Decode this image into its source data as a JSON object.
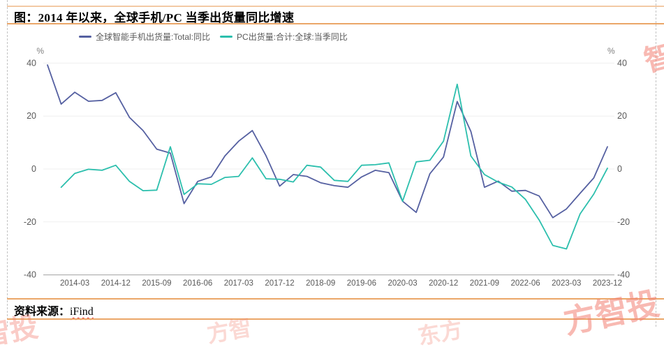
{
  "header": {
    "title": "图：2014 年以来，全球手机/PC 当季出货量同比增速"
  },
  "legend": [
    {
      "label": "全球智能手机出货量:Total:同比",
      "color": "#5560a1"
    },
    {
      "label": "PC出货量:合计:全球:当季同比",
      "color": "#2cbfad"
    }
  ],
  "footer": {
    "source_label": "资料来源：",
    "source_value": "iFind"
  },
  "watermark": {
    "text": "东方智投",
    "fragment_bottom_right": "方智投",
    "fragment_top_right": "智",
    "fragment_bottom_left": "智投",
    "fragment_center_1": "方智",
    "fragment_center_2": "东方"
  },
  "chart_data": {
    "type": "line",
    "title": "",
    "y_unit": "%",
    "y_ticks": [
      40,
      20,
      0,
      -20,
      -40
    ],
    "ylim": [
      -40,
      42
    ],
    "grid": "horizontal",
    "legend_position": "top-left",
    "x": [
      "2013-09",
      "2013-12",
      "2014-03",
      "2014-06",
      "2014-09",
      "2014-12",
      "2015-03",
      "2015-06",
      "2015-09",
      "2015-12",
      "2016-03",
      "2016-06",
      "2016-09",
      "2016-12",
      "2017-03",
      "2017-06",
      "2017-09",
      "2017-12",
      "2018-03",
      "2018-06",
      "2018-09",
      "2018-12",
      "2019-03",
      "2019-06",
      "2019-09",
      "2019-12",
      "2020-03",
      "2020-06",
      "2020-09",
      "2020-12",
      "2021-03",
      "2021-06",
      "2021-09",
      "2021-12",
      "2022-03",
      "2022-06",
      "2022-09",
      "2022-12",
      "2023-03",
      "2023-06",
      "2023-09",
      "2023-12"
    ],
    "x_tick_labels": [
      "2014-03",
      "2014-12",
      "2015-09",
      "2016-06",
      "2017-03",
      "2017-12",
      "2018-09",
      "2019-06",
      "2020-03",
      "2020-12",
      "2021-09",
      "2022-06",
      "2023-03",
      "2023-12"
    ],
    "series": [
      {
        "name": "全球智能手机出货量:Total:同比",
        "color": "#5560a1",
        "values": [
          39.3,
          24.5,
          29.0,
          25.6,
          25.9,
          28.8,
          19.5,
          14.5,
          7.5,
          6.0,
          -13.1,
          -4.7,
          -3.0,
          5.0,
          10.5,
          14.5,
          5.0,
          -6.5,
          -2.1,
          -2.8,
          -5.2,
          -6.3,
          -6.9,
          -3.0,
          -0.5,
          -1.4,
          -12.2,
          -16.4,
          -1.8,
          4.5,
          25.5,
          14.2,
          -6.9,
          -4.6,
          -8.4,
          -8.1,
          -10.2,
          -18.4,
          -15.1,
          -9.2,
          -3.4,
          8.4
        ]
      },
      {
        "name": "PC出货量:合计:全球:当季同比",
        "color": "#2cbfad",
        "values": [
          null,
          -6.9,
          -1.7,
          -0.1,
          -0.5,
          1.4,
          -4.7,
          -8.2,
          -8.0,
          8.4,
          -9.6,
          -5.6,
          -5.8,
          -3.2,
          -2.8,
          4.2,
          -3.7,
          -3.9,
          -4.9,
          1.4,
          0.7,
          -4.3,
          -4.7,
          1.4,
          1.6,
          2.3,
          -12.2,
          2.7,
          3.3,
          10.5,
          32.0,
          4.9,
          -2.1,
          -5.0,
          -6.8,
          -11.5,
          -19.3,
          -28.9,
          -30.2,
          -17.0,
          -9.5,
          0.3
        ]
      }
    ]
  }
}
